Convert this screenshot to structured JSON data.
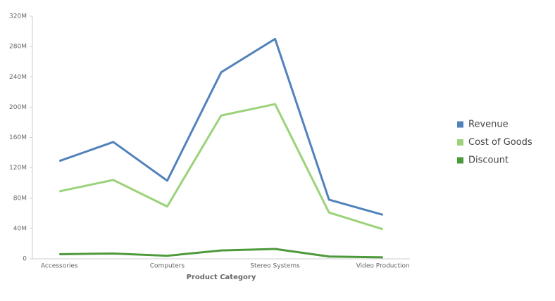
{
  "chart_data": {
    "type": "line",
    "x_label": "Product Category",
    "categories": [
      "Accessories",
      null,
      "Computers",
      null,
      "Stereo Systems",
      null,
      "Video Production"
    ],
    "series": [
      {
        "name": "Revenue",
        "color": "#5182bb",
        "values": [
          129000000,
          154000000,
          103000000,
          246000000,
          290000000,
          78000000,
          58000000
        ]
      },
      {
        "name": "Cost of Goods",
        "color": "#9bd27a",
        "values": [
          89000000,
          104000000,
          69000000,
          189000000,
          204000000,
          61000000,
          39000000
        ]
      },
      {
        "name": "Discount",
        "color": "#4d9a3a",
        "values": [
          6000000,
          7000000,
          4000000,
          11000000,
          13000000,
          3000000,
          2000000
        ]
      }
    ],
    "ylim": [
      0,
      320000000
    ],
    "yticks": [
      0,
      {
        "value": 40000000,
        "label": "40M"
      },
      {
        "value": 80000000,
        "label": "80M"
      },
      {
        "value": 120000000,
        "label": "120M"
      },
      {
        "value": 160000000,
        "label": "160M"
      },
      {
        "value": 200000000,
        "label": "200M"
      },
      {
        "value": 240000000,
        "label": "240M"
      },
      {
        "value": 280000000,
        "label": "280M"
      },
      {
        "value": 320000000,
        "label": "320M"
      }
    ],
    "legend": "right"
  }
}
